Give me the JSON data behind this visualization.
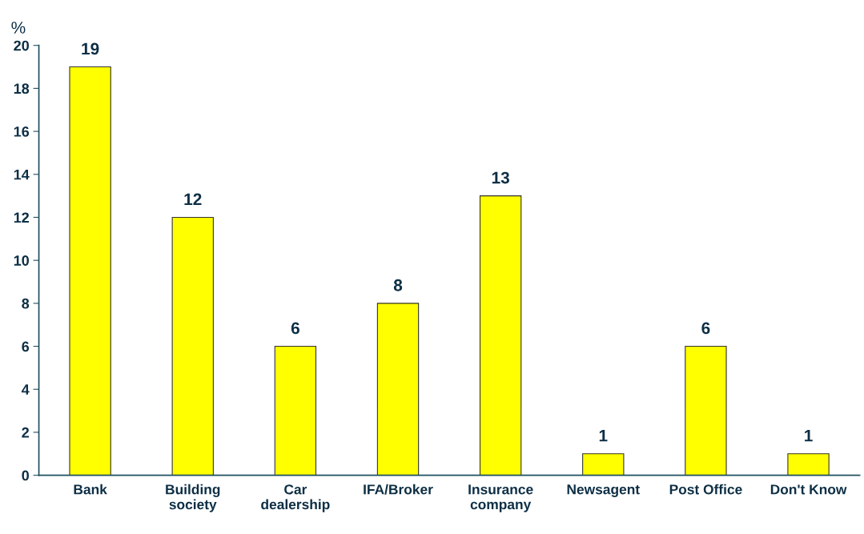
{
  "chart_data": {
    "type": "bar",
    "ylabel": "%",
    "categories": [
      "Bank",
      "Building\nsociety",
      "Car\ndealership",
      "IFA/Broker",
      "Insurance\ncompany",
      "Newsagent",
      "Post Office",
      "Don't Know"
    ],
    "values": [
      19,
      12,
      6,
      8,
      13,
      1,
      6,
      1
    ],
    "color": "#ffff00",
    "ylim": [
      0,
      20
    ],
    "yticks": [
      0,
      2,
      4,
      6,
      8,
      10,
      12,
      14,
      16,
      18,
      20
    ],
    "grid": false,
    "data_labels": true
  }
}
